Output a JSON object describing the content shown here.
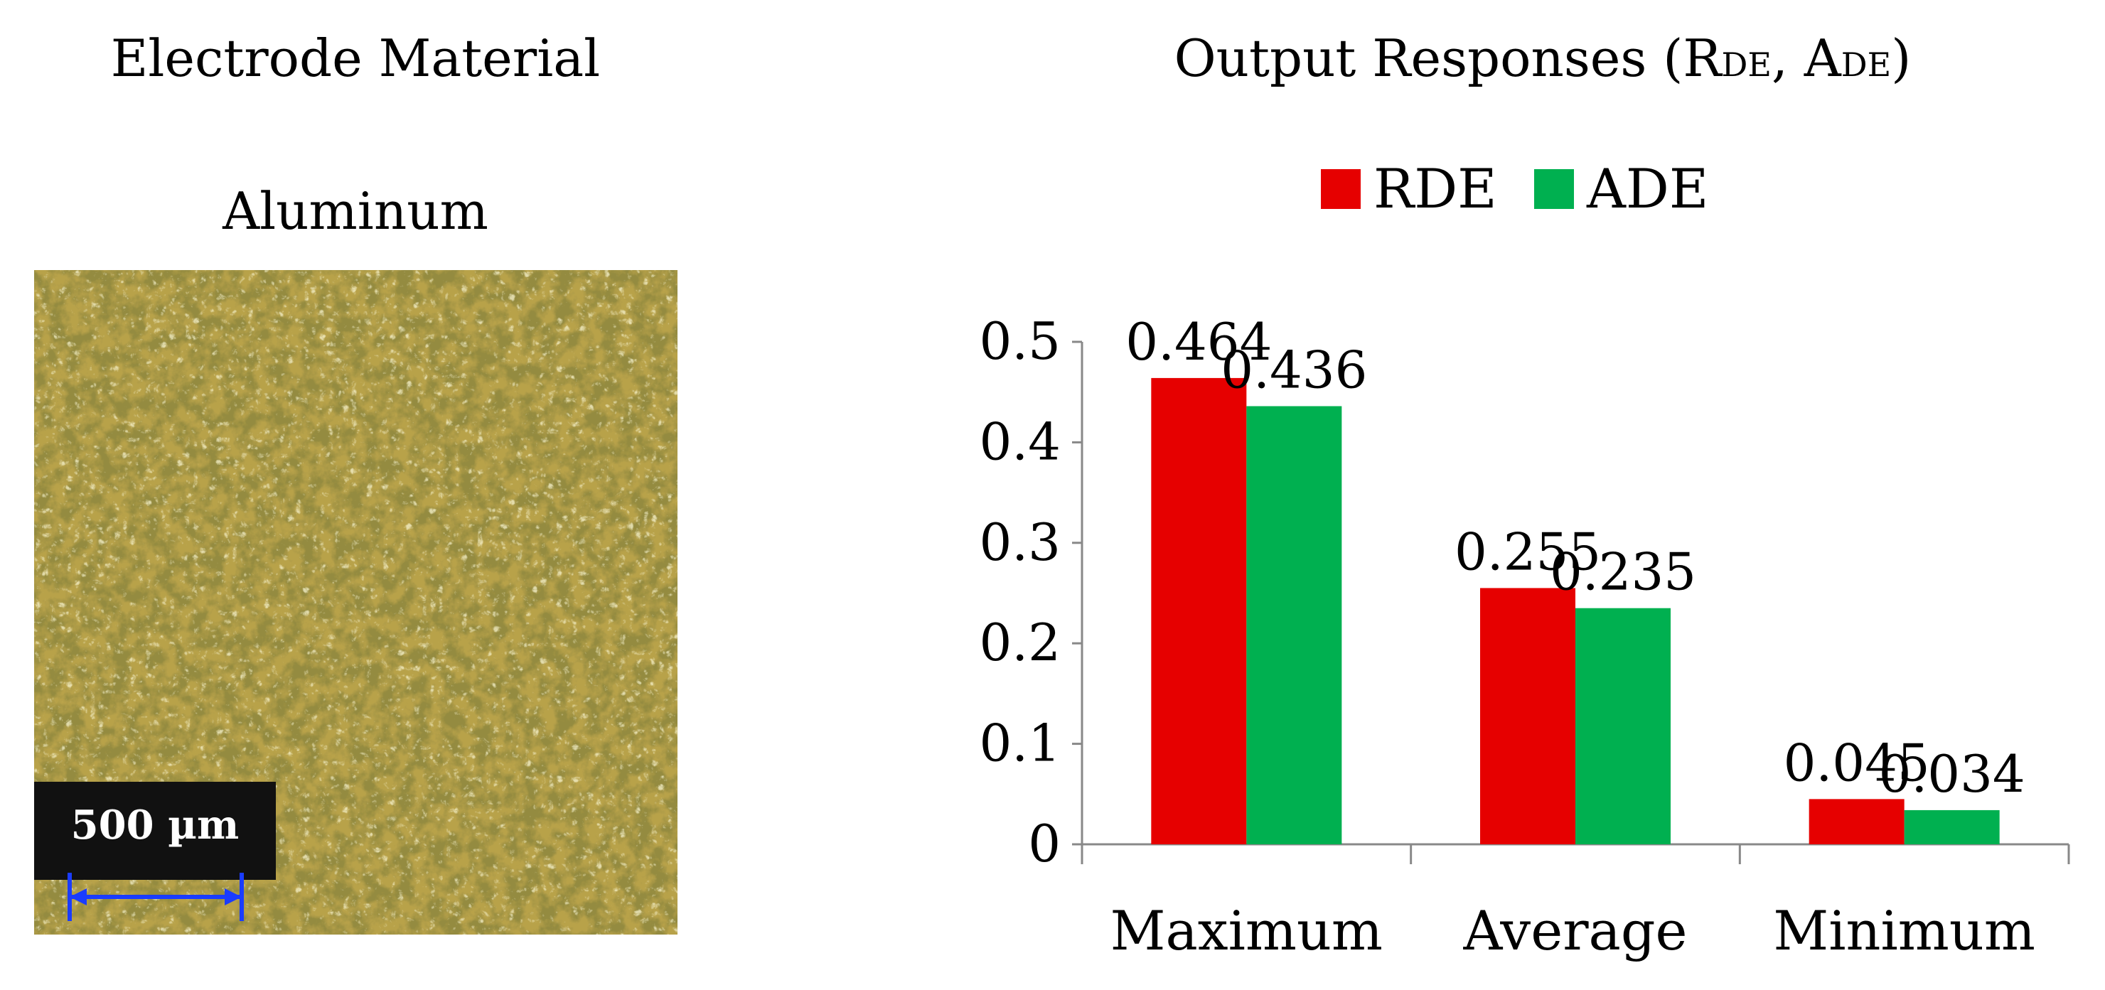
{
  "left_panel": {
    "heading": "Electrode Material",
    "material": "Aluminum",
    "scale_bar_label": "500 µm"
  },
  "right_panel": {
    "heading_prefix": "Output Responses (R",
    "heading_sub1": "DE",
    "heading_mid": ", A",
    "heading_sub2": "DE",
    "heading_suffix": ")"
  },
  "chart_data": {
    "type": "bar",
    "title": "Output Responses (RDE, ADE)",
    "categories": [
      "Maximum",
      "Average",
      "Minimum"
    ],
    "series": [
      {
        "name": "RDE",
        "values": [
          0.464,
          0.255,
          0.045
        ],
        "color": "#e60000",
        "labels": [
          "0.464",
          "0.255",
          "0.045"
        ]
      },
      {
        "name": "ADE",
        "values": [
          0.436,
          0.235,
          0.034
        ],
        "color": "#00b050",
        "labels": [
          "0.436",
          "0.235",
          "0.034"
        ]
      }
    ],
    "yticks": [
      0,
      0.1,
      0.2,
      0.3,
      0.4,
      0.5
    ],
    "ytick_labels": [
      "0",
      "0.1",
      "0.2",
      "0.3",
      "0.4",
      "0.5"
    ],
    "ylim": [
      0,
      0.5
    ],
    "xlabel": "",
    "ylabel": "",
    "legend_position": "top"
  }
}
